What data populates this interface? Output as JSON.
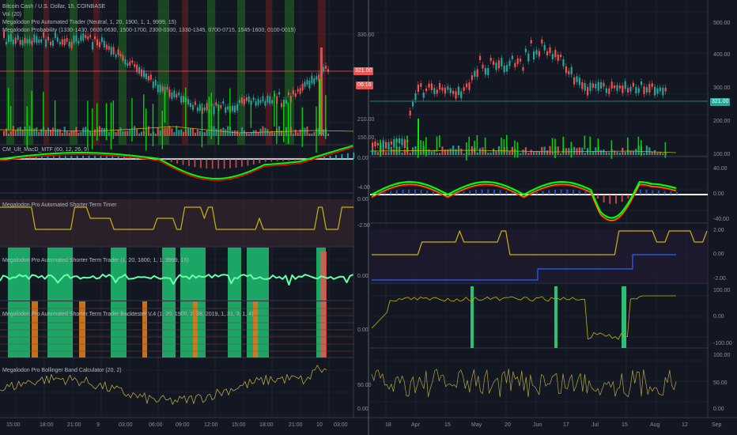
{
  "left_chart": {
    "main_header": {
      "symbol_line": "Bitcoin Cash / U.S. Dollar, 15, COINBASE",
      "indicator_1": "Vol (20)",
      "indicator_2": "Megalodon Pro Automated Trader (Neutral, 1, 20, 1900, 1, 1, 9999, 15)",
      "indicator_3": "Megalodon Probability (1330-1430, 0600-0630, 1500-1700, 2300-0300, 1330-1345, 0700-0715, 1545-1600, 0100-0015)"
    },
    "main_axis": [
      "330.00",
      "210.00",
      "150.00"
    ],
    "price_badge": "321.00",
    "countdown_badge": "06:16",
    "macd_label": "CM_Ult_MacD_MTF (60, 12, 26, 9)",
    "macd_axis": [
      "0.00",
      "-4.00"
    ],
    "timer_label": "Megalodon Pro Automated Shorter Term Timer",
    "timer_axis": [
      "0.00",
      "-2.50"
    ],
    "trader_label": "Megalodon Pro Automated Shorter Term Trader (1, 20, 1800, 1, 1, 9999, 15)",
    "trader_axis": [
      "0.00"
    ],
    "backtester_label": "Megalodon Pro Automated Shorter Term Trader Backtester V.4 (1, 20, 1900, 2, 28, 2019, 1, 31, 3, 1, 4)",
    "backtester_axis": [
      "0.00"
    ],
    "bollinger_label": "Megalodon Pro Bollinger Band Calculator (20, 2)",
    "bollinger_axis": [
      "50.00",
      "0.00"
    ],
    "time_axis": [
      "15:00",
      "18:00",
      "21:00",
      "9",
      "03:00",
      "06:00",
      "09:00",
      "12:00",
      "15:00",
      "18:00",
      "21:00",
      "10",
      "03:00"
    ]
  },
  "right_chart": {
    "main_axis": [
      "500.00",
      "400.00",
      "300.00",
      "200.00",
      "100.00"
    ],
    "price_badge": "321.00",
    "macd_axis": [
      "40.00",
      "0.00",
      "-40.00"
    ],
    "timer_axis": [
      "2.00",
      "0.00",
      "-2.00"
    ],
    "trader_axis": [
      "100.00",
      "0.00",
      "-100.00"
    ],
    "bollinger_axis": [
      "100.00",
      "50.00",
      "0.00"
    ],
    "time_axis": [
      "18",
      "Apr",
      "15",
      "May",
      "20",
      "Jun",
      "17",
      "Jul",
      "15",
      "Aug",
      "12",
      "Sep"
    ]
  },
  "colors": {
    "background": "#131722",
    "grid": "#2a2e39",
    "up": "#26a69a",
    "down": "#ef5350",
    "bright_green": "#00e600",
    "macd_line": "#00ff00",
    "signal_line": "#ff0000",
    "yellow": "#c8b400",
    "bollinger": "#b5a642",
    "blue": "#2962ff",
    "badge_red": "#ef5350"
  }
}
